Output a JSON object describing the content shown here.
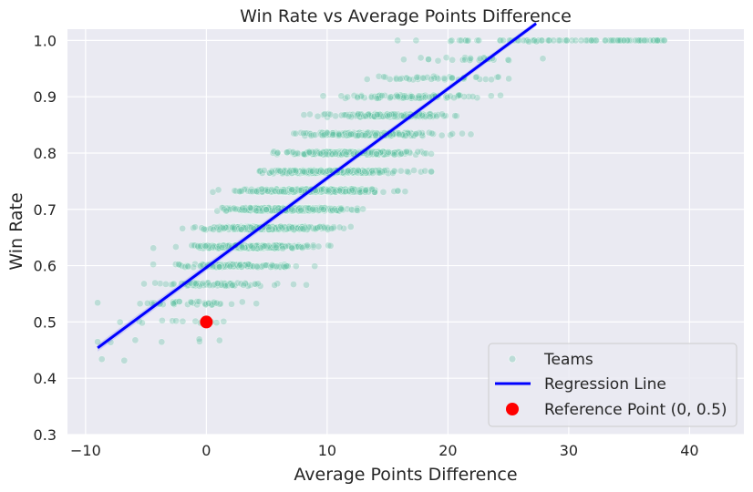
{
  "chart_data": {
    "type": "scatter",
    "title": "Win Rate vs Average Points Difference",
    "xlabel": "Average Points Difference",
    "ylabel": "Win Rate",
    "xlim": [
      -11.5,
      44.5
    ],
    "ylim": [
      0.3,
      1.02
    ],
    "x_ticks": [
      -10,
      0,
      10,
      20,
      30,
      40
    ],
    "x_tick_labels": [
      "−10",
      "0",
      "10",
      "20",
      "30",
      "40"
    ],
    "y_ticks": [
      0.3,
      0.4,
      0.5,
      0.6,
      0.7,
      0.8,
      0.9,
      1.0
    ],
    "y_tick_labels": [
      "0.3",
      "0.4",
      "0.5",
      "0.6",
      "0.7",
      "0.8",
      "0.9",
      "1.0"
    ],
    "grid": true,
    "legend_position": "lower-right",
    "colors": {
      "plot_background": "#eaeaf2",
      "grid": "#ffffff",
      "teams": "#66c2a5",
      "regression": "#0000ff",
      "reference": "#ff0000"
    },
    "series": [
      {
        "name": "Teams",
        "kind": "scatter",
        "approximate_trend": {
          "slope": 0.01585,
          "intercept": 0.597,
          "spread_sd": 0.045
        },
        "x_range": [
          -9,
          42
        ],
        "approximate_count": 2600
      },
      {
        "name": "Regression Line",
        "kind": "line",
        "x": [
          -9,
          27.3
        ],
        "y": [
          0.454,
          1.03
        ]
      },
      {
        "name": "Reference Point (0, 0.5)",
        "kind": "point",
        "x": [
          0
        ],
        "y": [
          0.5
        ]
      }
    ]
  }
}
